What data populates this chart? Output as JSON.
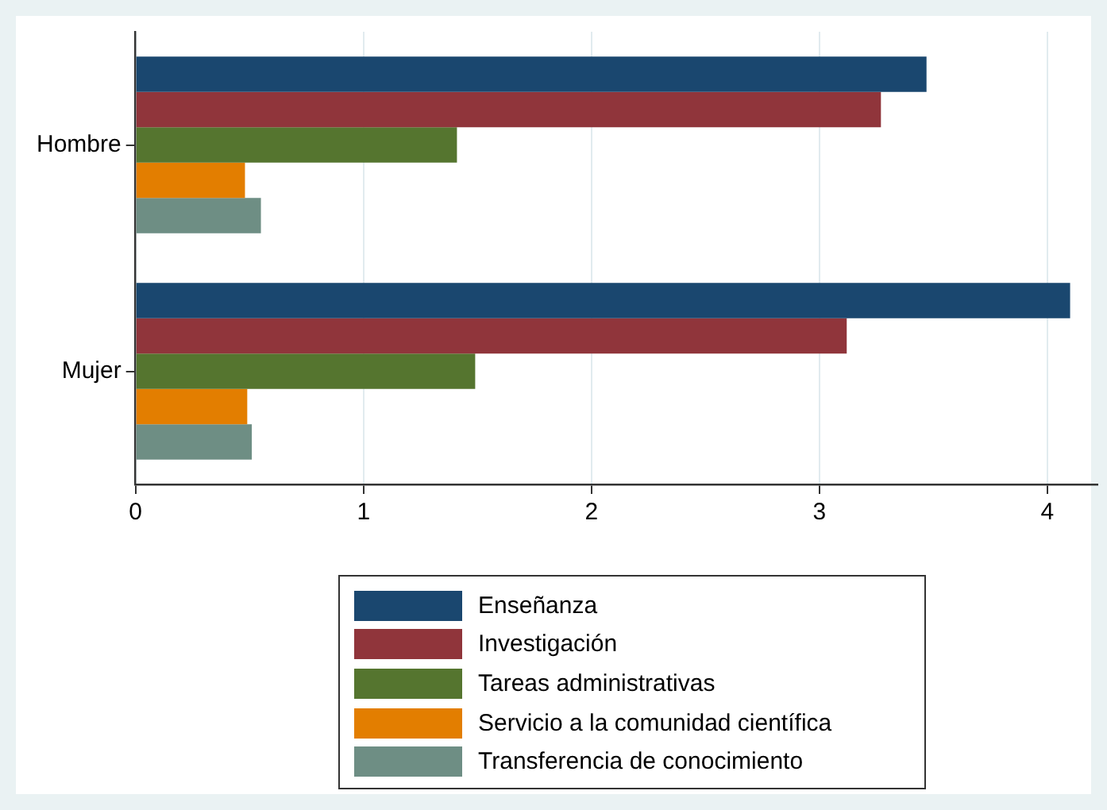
{
  "chart_data": {
    "type": "bar",
    "orientation": "horizontal",
    "categories": [
      "Hombre",
      "Mujer"
    ],
    "series": [
      {
        "name": "Enseñanza",
        "color": "#1a476f",
        "values": [
          3.47,
          4.1
        ]
      },
      {
        "name": "Investigación",
        "color": "#90353b",
        "values": [
          3.27,
          3.12
        ]
      },
      {
        "name": "Tareas administrativas",
        "color": "#55752f",
        "values": [
          1.41,
          1.49
        ]
      },
      {
        "name": "Servicio a la comunidad científica",
        "color": "#e37e00",
        "values": [
          0.48,
          0.49
        ]
      },
      {
        "name": "Transferencia de conocimiento",
        "color": "#6e8e84",
        "values": [
          0.55,
          0.51
        ]
      }
    ],
    "xlim": [
      0,
      4.22
    ],
    "xticks": [
      0,
      1,
      2,
      3,
      4
    ],
    "grid": "x",
    "legend": "bottom"
  }
}
